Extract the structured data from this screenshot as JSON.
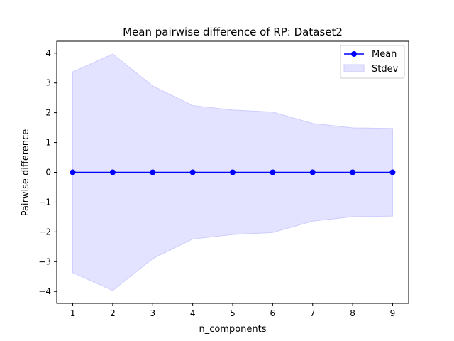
{
  "chart_data": {
    "type": "line",
    "title": "Mean pairwise difference of RP: Dataset2",
    "xlabel": "n_components",
    "ylabel": "Pairwise difference",
    "xlim": [
      0.6,
      9.4
    ],
    "ylim": [
      -4.4,
      4.4
    ],
    "x": [
      1,
      2,
      3,
      4,
      5,
      6,
      7,
      8,
      9
    ],
    "x_ticks": [
      1,
      2,
      3,
      4,
      5,
      6,
      7,
      8,
      9
    ],
    "y_ticks": [
      -4,
      -3,
      -2,
      -1,
      0,
      1,
      2,
      3,
      4
    ],
    "y_tick_labels": [
      "−4",
      "−3",
      "−2",
      "−1",
      "0",
      "1",
      "2",
      "3",
      "4"
    ],
    "series": [
      {
        "name": "Mean",
        "kind": "line-with-markers",
        "color": "#0000ff",
        "values": [
          0,
          0,
          0,
          0,
          0,
          0,
          0,
          0,
          0
        ]
      },
      {
        "name": "Stdev",
        "kind": "band",
        "color": "#ccccff",
        "upper": [
          3.37,
          3.97,
          2.9,
          2.24,
          2.09,
          2.02,
          1.64,
          1.49,
          1.47
        ],
        "lower": [
          -3.37,
          -3.97,
          -2.9,
          -2.24,
          -2.09,
          -2.02,
          -1.64,
          -1.49,
          -1.47
        ]
      }
    ],
    "legend": {
      "position": "upper-right",
      "entries": [
        "Mean",
        "Stdev"
      ]
    },
    "grid": false
  }
}
